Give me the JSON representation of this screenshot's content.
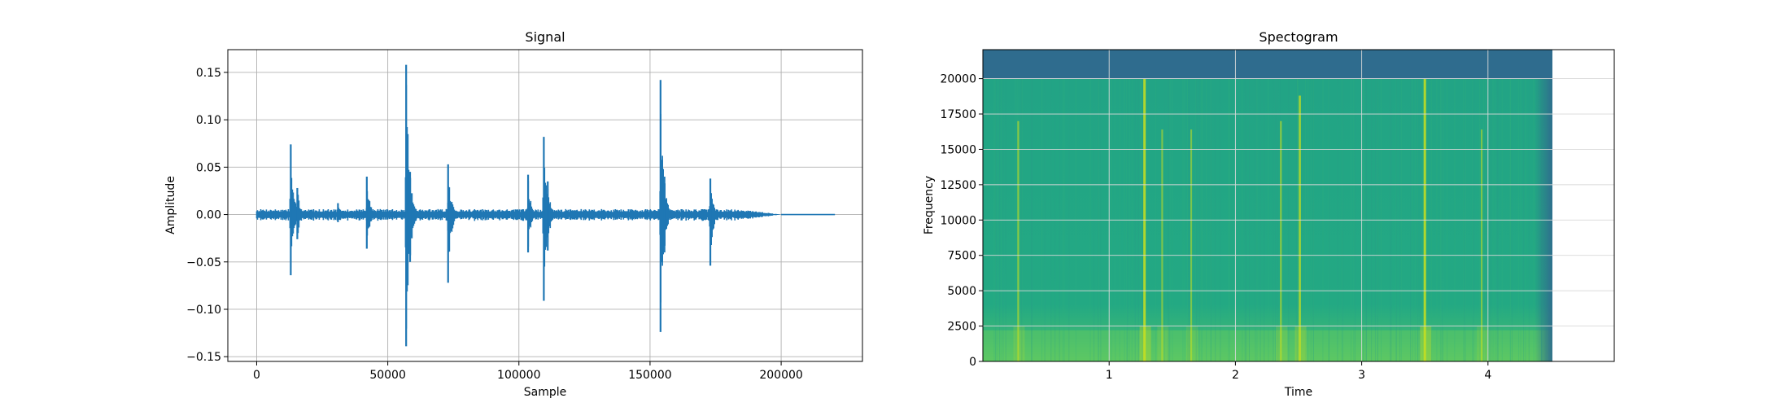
{
  "chart_data": [
    {
      "type": "line",
      "title": "Signal",
      "xlabel": "Sample",
      "ylabel": "Amplitude",
      "xlim": [
        -11000,
        231000
      ],
      "ylim": [
        -0.155,
        0.174
      ],
      "xticks": [
        0,
        50000,
        100000,
        150000,
        200000
      ],
      "xtick_labels": [
        "0",
        "50000",
        "100000",
        "150000",
        "200000"
      ],
      "yticks": [
        -0.15,
        -0.1,
        -0.05,
        0.0,
        0.05,
        0.1,
        0.15
      ],
      "ytick_labels": [
        "−0.15",
        "−0.10",
        "−0.05",
        "0.00",
        "0.05",
        "0.10",
        "0.15"
      ],
      "grid": true,
      "color": "#1f77b4",
      "series": [
        {
          "noise_floor_amplitude": 0.005,
          "signal_end_sample": 220500,
          "decay_start_sample": 185000,
          "decay_end_sample": 200000,
          "peaks": [
            {
              "x": 13000,
              "max": 0.074,
              "min": -0.064
            },
            {
              "x": 15500,
              "max": 0.028,
              "min": -0.026
            },
            {
              "x": 31000,
              "max": 0.012,
              "min": -0.008
            },
            {
              "x": 42000,
              "max": 0.04,
              "min": -0.036
            },
            {
              "x": 57000,
              "max": 0.158,
              "min": -0.139
            },
            {
              "x": 58500,
              "max": 0.045,
              "min": -0.05
            },
            {
              "x": 73000,
              "max": 0.053,
              "min": -0.072
            },
            {
              "x": 103500,
              "max": 0.042,
              "min": -0.04
            },
            {
              "x": 109500,
              "max": 0.082,
              "min": -0.091
            },
            {
              "x": 111000,
              "max": 0.035,
              "min": -0.038
            },
            {
              "x": 154000,
              "max": 0.142,
              "min": -0.124
            },
            {
              "x": 155500,
              "max": 0.04,
              "min": -0.04
            },
            {
              "x": 173000,
              "max": 0.038,
              "min": -0.054
            }
          ]
        }
      ]
    },
    {
      "type": "heatmap",
      "title": "Spectogram",
      "xlabel": "Time",
      "ylabel": "Frequency",
      "xlim": [
        0.0,
        5.0
      ],
      "ylim": [
        0,
        22050
      ],
      "data_xlim": [
        0.0,
        4.51
      ],
      "xticks": [
        1,
        2,
        3,
        4
      ],
      "xtick_labels": [
        "1",
        "2",
        "3",
        "4"
      ],
      "yticks": [
        0,
        2500,
        5000,
        7500,
        10000,
        12500,
        15000,
        17500,
        20000
      ],
      "ytick_labels": [
        "0",
        "2500",
        "5000",
        "7500",
        "10000",
        "12500",
        "15000",
        "17500",
        "20000"
      ],
      "grid": true,
      "colormap": "viridis",
      "colors": {
        "band_top": "#2f6c8e",
        "body": "#20a486",
        "low_band": "#5ec962",
        "bright": "#c8e020"
      },
      "high_freq_cutoff": 20000,
      "low_freq_band": [
        0,
        2200
      ],
      "onsets": [
        {
          "t": 0.28,
          "strength": 0.5
        },
        {
          "t": 1.28,
          "strength": 1.0
        },
        {
          "t": 1.42,
          "strength": 0.4
        },
        {
          "t": 1.65,
          "strength": 0.4
        },
        {
          "t": 2.36,
          "strength": 0.5
        },
        {
          "t": 2.51,
          "strength": 0.8
        },
        {
          "t": 3.5,
          "strength": 1.0
        },
        {
          "t": 3.95,
          "strength": 0.4
        }
      ]
    }
  ]
}
